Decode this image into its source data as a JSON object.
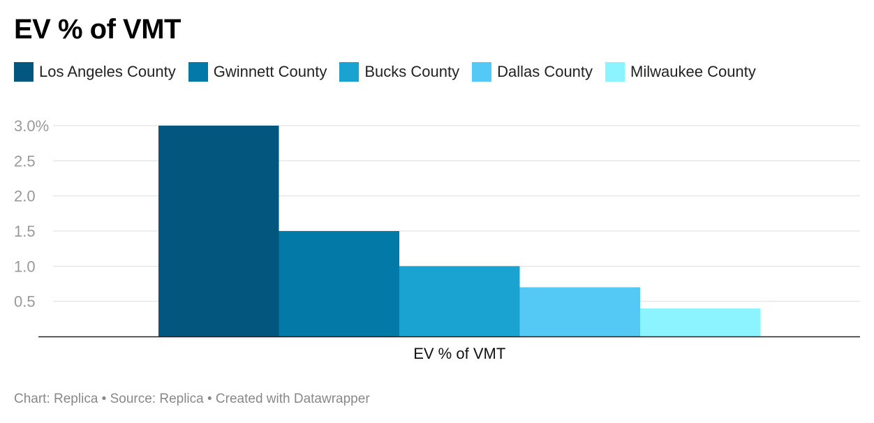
{
  "chart_data": {
    "type": "bar",
    "title": "EV % of VMT",
    "categories": [
      "EV % of VMT"
    ],
    "series": [
      {
        "name": "Los Angeles County",
        "values": [
          3.0
        ],
        "color": "#03567e"
      },
      {
        "name": "Gwinnett County",
        "values": [
          1.5
        ],
        "color": "#0279a7"
      },
      {
        "name": "Bucks County",
        "values": [
          1.0
        ],
        "color": "#1aa3d0"
      },
      {
        "name": "Dallas County",
        "values": [
          0.7
        ],
        "color": "#54c9f5"
      },
      {
        "name": "Milwaukee County",
        "values": [
          0.4
        ],
        "color": "#8bf4ff"
      }
    ],
    "y_ticks": [
      "0.5",
      "1.0",
      "1.5",
      "2.0",
      "2.5",
      "3.0%"
    ],
    "y_tick_values": [
      0.5,
      1.0,
      1.5,
      2.0,
      2.5,
      3.0
    ],
    "ylim": [
      0,
      3.0
    ],
    "grid": true,
    "legend_position": "top-left"
  },
  "footer": {
    "text": "Chart: Replica • Source: Replica • Created with Datawrapper"
  }
}
